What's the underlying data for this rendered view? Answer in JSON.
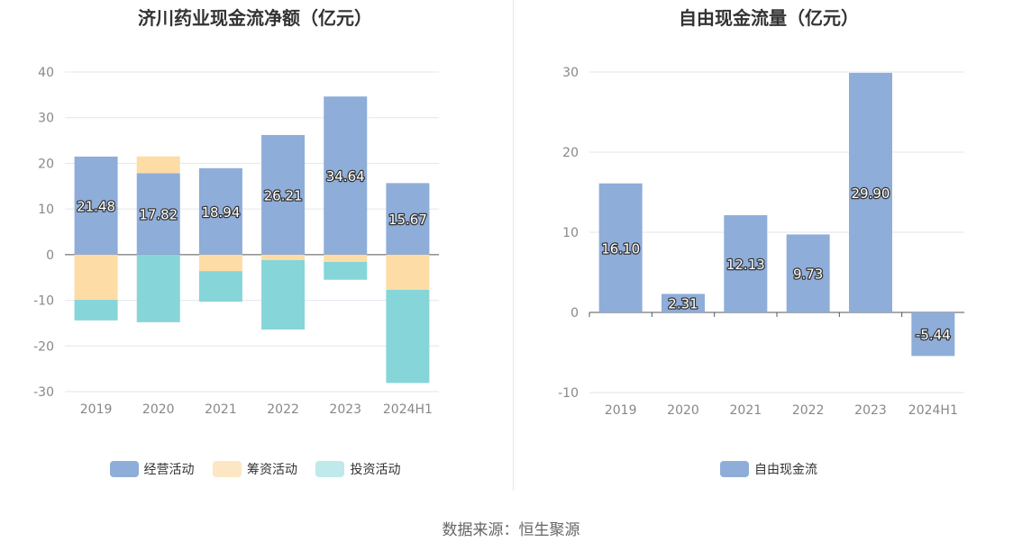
{
  "footer": "数据来源：恒生聚源",
  "colors": {
    "operating": "#8eadd9",
    "financing": "#fddca6",
    "investing": "#86d5d9",
    "free": "#8eadd9"
  },
  "chart_data": [
    {
      "type": "bar",
      "stacked": true,
      "title": "济川药业现金流净额（亿元）",
      "categories": [
        "2019",
        "2020",
        "2021",
        "2022",
        "2023",
        "2024H1"
      ],
      "ylim": [
        -30,
        40
      ],
      "yticks": [
        40,
        30,
        20,
        10,
        0,
        -10,
        -20,
        -30
      ],
      "grid": true,
      "legend_position": "bottom",
      "series": [
        {
          "name": "经营活动",
          "values": [
            21.48,
            17.82,
            18.94,
            26.21,
            34.64,
            15.67
          ]
        },
        {
          "name": "筹资活动",
          "values": [
            -9.9,
            3.7,
            -3.6,
            -1.2,
            -1.6,
            -7.7
          ]
        },
        {
          "name": "投资活动",
          "values": [
            -4.5,
            -14.8,
            -6.7,
            -15.2,
            -3.9,
            -20.4
          ]
        }
      ],
      "data_labels": [
        "21.48",
        "17.82",
        "18.94",
        "26.21",
        "34.64",
        "15.67"
      ]
    },
    {
      "type": "bar",
      "title": "自由现金流量（亿元）",
      "categories": [
        "2019",
        "2020",
        "2021",
        "2022",
        "2023",
        "2024H1"
      ],
      "ylim": [
        -10,
        30
      ],
      "yticks": [
        30,
        20,
        10,
        0,
        -10
      ],
      "grid": true,
      "legend_position": "bottom",
      "series": [
        {
          "name": "自由现金流",
          "values": [
            16.1,
            2.31,
            12.13,
            9.73,
            29.9,
            -5.44
          ]
        }
      ],
      "data_labels": [
        "16.10",
        "2.31",
        "12.13",
        "9.73",
        "29.90",
        "-5.44"
      ]
    }
  ]
}
